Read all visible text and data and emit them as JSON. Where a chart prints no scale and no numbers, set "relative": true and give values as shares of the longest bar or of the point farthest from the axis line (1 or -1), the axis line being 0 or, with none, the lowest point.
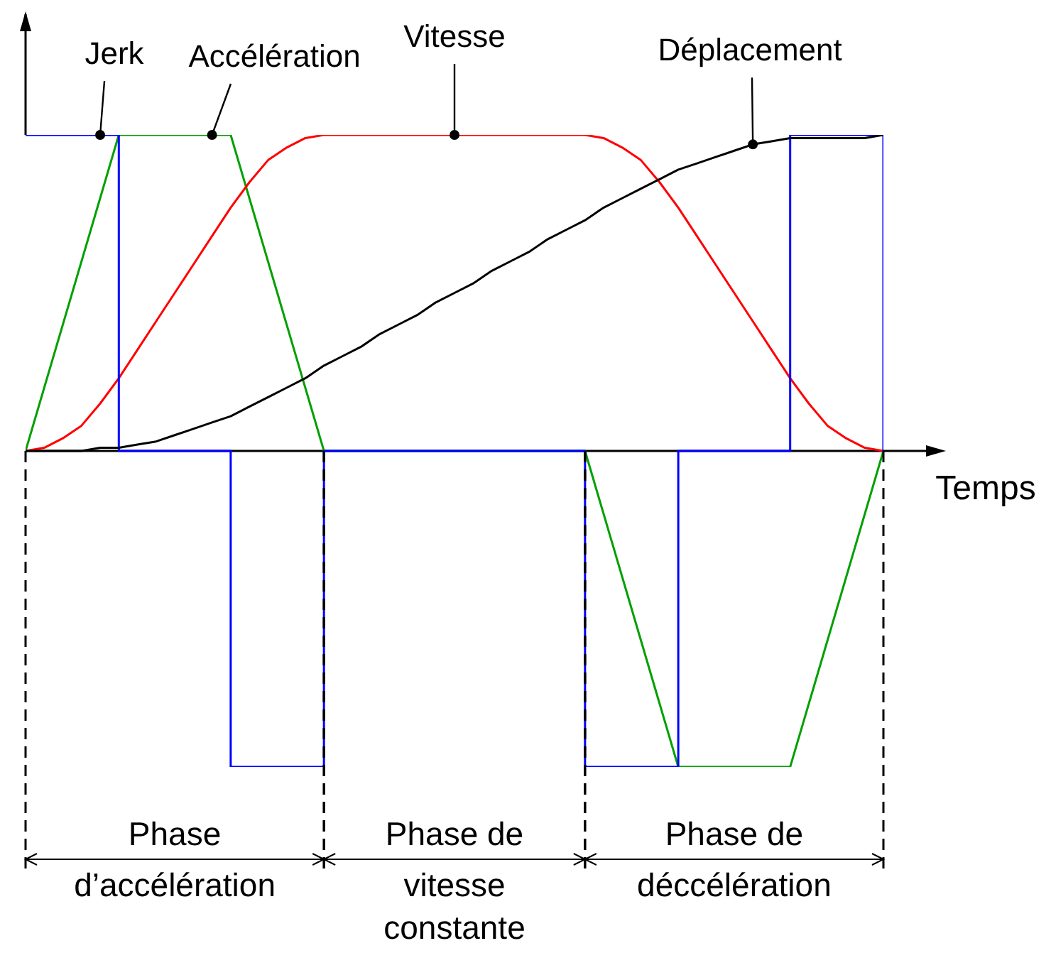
{
  "chart_data": {
    "type": "line",
    "relative": true,
    "xlabel": "Temps",
    "grid": "x",
    "marker": "none",
    "line_style": "solid",
    "categories": [
      null,
      null,
      null,
      null,
      null,
      null,
      null,
      null,
      null,
      null,
      null,
      null,
      null,
      null,
      null,
      null,
      null,
      null,
      null,
      null,
      null,
      null,
      null,
      null,
      null,
      null,
      null,
      null,
      null,
      null,
      null,
      null,
      null,
      null,
      null,
      null,
      null,
      null,
      null,
      null,
      null,
      null,
      null,
      null,
      null,
      null,
      null
    ],
    "series": [
      {
        "name": "Jerk",
        "type": "step",
        "color": "#0000ff",
        "values": [
          1,
          1,
          1,
          1,
          1,
          0,
          0,
          0,
          0,
          0,
          0,
          -1,
          -1,
          -1,
          -1,
          -1,
          0,
          0,
          0,
          0,
          0,
          0,
          0,
          0,
          0,
          0,
          0,
          0,
          0,
          0,
          -1,
          -1,
          -1,
          -1,
          -1,
          0,
          0,
          0,
          0,
          0,
          0,
          1,
          1,
          1,
          1,
          1,
          0
        ]
      },
      {
        "name": "Accélération",
        "type": "line",
        "color": "#00a000",
        "values": [
          0,
          0.2,
          0.4,
          0.6,
          0.8,
          1,
          1,
          1,
          1,
          1,
          1,
          1,
          0.8,
          0.6,
          0.4,
          0.2,
          0,
          0,
          0,
          0,
          0,
          0,
          0,
          0,
          0,
          0,
          0,
          0,
          0,
          0,
          0,
          -0.2,
          -0.4,
          -0.6,
          -0.8,
          -1,
          -1,
          -1,
          -1,
          -1,
          -1,
          -1,
          -0.8,
          -0.6,
          -0.4,
          -0.2,
          0
        ]
      },
      {
        "name": "Vitesse",
        "type": "line",
        "color": "#ff0000",
        "values": [
          0,
          0.01,
          0.04,
          0.08,
          0.15,
          0.23,
          0.32,
          0.41,
          0.5,
          0.59,
          0.68,
          0.77,
          0.85,
          0.92,
          0.96,
          0.99,
          1,
          1,
          1,
          1,
          1,
          1,
          1,
          1,
          1,
          1,
          1,
          1,
          1,
          1,
          1,
          0.99,
          0.96,
          0.92,
          0.85,
          0.77,
          0.68,
          0.59,
          0.5,
          0.41,
          0.32,
          0.23,
          0.15,
          0.08,
          0.04,
          0.01,
          0
        ]
      },
      {
        "name": "Déplacement",
        "type": "line",
        "color": "#000000",
        "values": [
          0,
          0,
          0,
          0,
          0.01,
          0.01,
          0.02,
          0.03,
          0.05,
          0.07,
          0.09,
          0.11,
          0.14,
          0.17,
          0.2,
          0.23,
          0.27,
          0.3,
          0.33,
          0.37,
          0.4,
          0.43,
          0.47,
          0.5,
          0.53,
          0.57,
          0.6,
          0.63,
          0.67,
          0.7,
          0.73,
          0.77,
          0.8,
          0.83,
          0.86,
          0.89,
          0.91,
          0.93,
          0.95,
          0.97,
          0.98,
          0.99,
          0.99,
          0.99,
          0.99,
          0.99,
          1
        ]
      }
    ],
    "annotations": [
      "Phase\nd’accélération",
      "Phase de\nvitesse\nconstante",
      "Phase de\ndéccélération"
    ]
  }
}
